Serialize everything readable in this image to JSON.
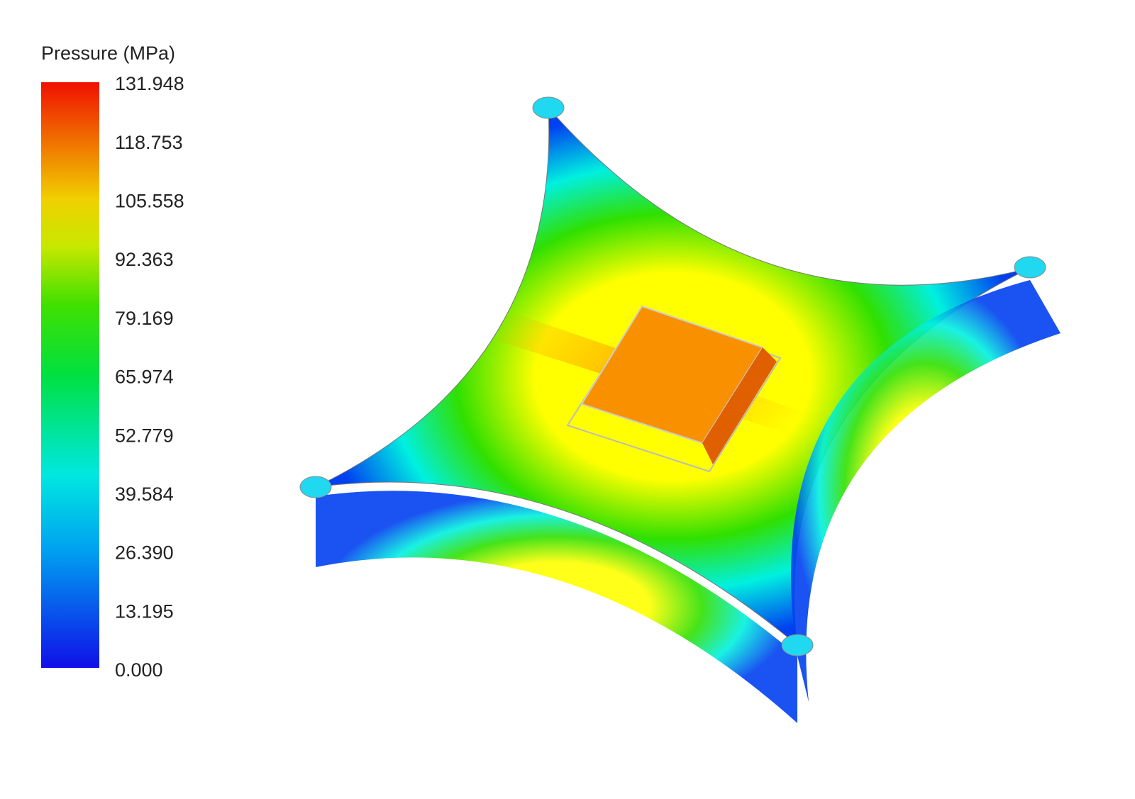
{
  "legend": {
    "title": "Pressure (MPa)",
    "labels": [
      "131.948",
      "118.753",
      "105.558",
      "92.363",
      "79.169",
      "65.974",
      "52.779",
      "39.584",
      "26.390",
      "13.195",
      "0.000"
    ]
  }
}
